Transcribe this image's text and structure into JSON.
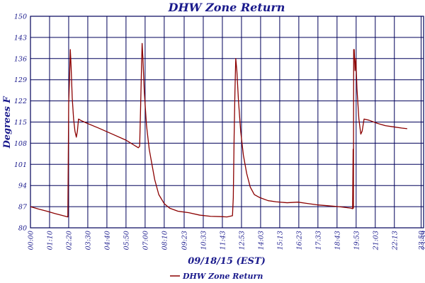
{
  "chart_data": {
    "type": "line",
    "title": "DHW Zone Return",
    "xlabel": "09/18/15 (EST)",
    "ylabel": "Degrees F",
    "ylim": [
      80,
      150
    ],
    "yticks": [
      80,
      87,
      94,
      101,
      108,
      115,
      122,
      129,
      136,
      143,
      150
    ],
    "xlim": [
      0,
      1440
    ],
    "x_unit": "minutes since 00:00",
    "xticks": [
      {
        "x": 0,
        "label": "00:00"
      },
      {
        "x": 70,
        "label": "01:10"
      },
      {
        "x": 140,
        "label": "02:20"
      },
      {
        "x": 210,
        "label": "03:30"
      },
      {
        "x": 280,
        "label": "04:40"
      },
      {
        "x": 350,
        "label": "05:50"
      },
      {
        "x": 420,
        "label": "07:00"
      },
      {
        "x": 490,
        "label": "08:10"
      },
      {
        "x": 563,
        "label": "09:23"
      },
      {
        "x": 633,
        "label": "10:33"
      },
      {
        "x": 703,
        "label": "11:43"
      },
      {
        "x": 773,
        "label": "12:53"
      },
      {
        "x": 843,
        "label": "14:03"
      },
      {
        "x": 913,
        "label": "15:13"
      },
      {
        "x": 983,
        "label": "16:23"
      },
      {
        "x": 1053,
        "label": "17:33"
      },
      {
        "x": 1123,
        "label": "18:43"
      },
      {
        "x": 1193,
        "label": "19:53"
      },
      {
        "x": 1263,
        "label": "21:03"
      },
      {
        "x": 1333,
        "label": "22:13"
      },
      {
        "x": 1431,
        "label": "23:50"
      },
      {
        "x": 1440,
        "label": "23:59"
      }
    ],
    "grid": true,
    "legend": "bottom-center",
    "series": [
      {
        "name": "DHW Zone Return",
        "color": "#8b0000",
        "points": [
          [
            0,
            87.0
          ],
          [
            30,
            86.2
          ],
          [
            60,
            85.5
          ],
          [
            90,
            84.7
          ],
          [
            120,
            84.0
          ],
          [
            137,
            83.6
          ],
          [
            140,
            121.0
          ],
          [
            143,
            129.0
          ],
          [
            146,
            139.0
          ],
          [
            149,
            133.0
          ],
          [
            153,
            123.0
          ],
          [
            158,
            116.0
          ],
          [
            163,
            112.0
          ],
          [
            168,
            110.0
          ],
          [
            172,
            112.0
          ],
          [
            176,
            116.0
          ],
          [
            185,
            115.5
          ],
          [
            210,
            114.5
          ],
          [
            250,
            113.0
          ],
          [
            300,
            111.0
          ],
          [
            350,
            109.0
          ],
          [
            395,
            106.5
          ],
          [
            400,
            107.0
          ],
          [
            403,
            118.0
          ],
          [
            406,
            130.0
          ],
          [
            409,
            141.0
          ],
          [
            412,
            136.0
          ],
          [
            417,
            125.0
          ],
          [
            425,
            114.0
          ],
          [
            435,
            106.0
          ],
          [
            445,
            101.0
          ],
          [
            455,
            96.0
          ],
          [
            470,
            91.0
          ],
          [
            490,
            88.0
          ],
          [
            510,
            86.5
          ],
          [
            540,
            85.5
          ],
          [
            580,
            85.0
          ],
          [
            620,
            84.2
          ],
          [
            660,
            83.8
          ],
          [
            700,
            83.7
          ],
          [
            720,
            83.6
          ],
          [
            740,
            84.0
          ],
          [
            743,
            90.0
          ],
          [
            746,
            110.0
          ],
          [
            749,
            125.0
          ],
          [
            752,
            136.0
          ],
          [
            756,
            132.0
          ],
          [
            762,
            122.0
          ],
          [
            770,
            112.0
          ],
          [
            780,
            104.0
          ],
          [
            792,
            98.0
          ],
          [
            805,
            93.5
          ],
          [
            820,
            91.0
          ],
          [
            840,
            90.0
          ],
          [
            870,
            89.0
          ],
          [
            900,
            88.6
          ],
          [
            940,
            88.3
          ],
          [
            980,
            88.5
          ],
          [
            1010,
            88.1
          ],
          [
            1050,
            87.6
          ],
          [
            1090,
            87.3
          ],
          [
            1130,
            87.0
          ],
          [
            1175,
            86.5
          ],
          [
            1180,
            86.3
          ],
          [
            1182,
            106.0
          ],
          [
            1183,
            86.5
          ],
          [
            1184,
            139.0
          ],
          [
            1186,
            139.0
          ],
          [
            1189,
            132.0
          ],
          [
            1192,
            136.0
          ],
          [
            1196,
            126.0
          ],
          [
            1203,
            116.0
          ],
          [
            1210,
            111.0
          ],
          [
            1215,
            112.0
          ],
          [
            1222,
            116.0
          ],
          [
            1240,
            115.6
          ],
          [
            1270,
            114.6
          ],
          [
            1300,
            113.8
          ],
          [
            1330,
            113.4
          ],
          [
            1360,
            113.0
          ],
          [
            1380,
            112.8
          ]
        ]
      }
    ]
  }
}
